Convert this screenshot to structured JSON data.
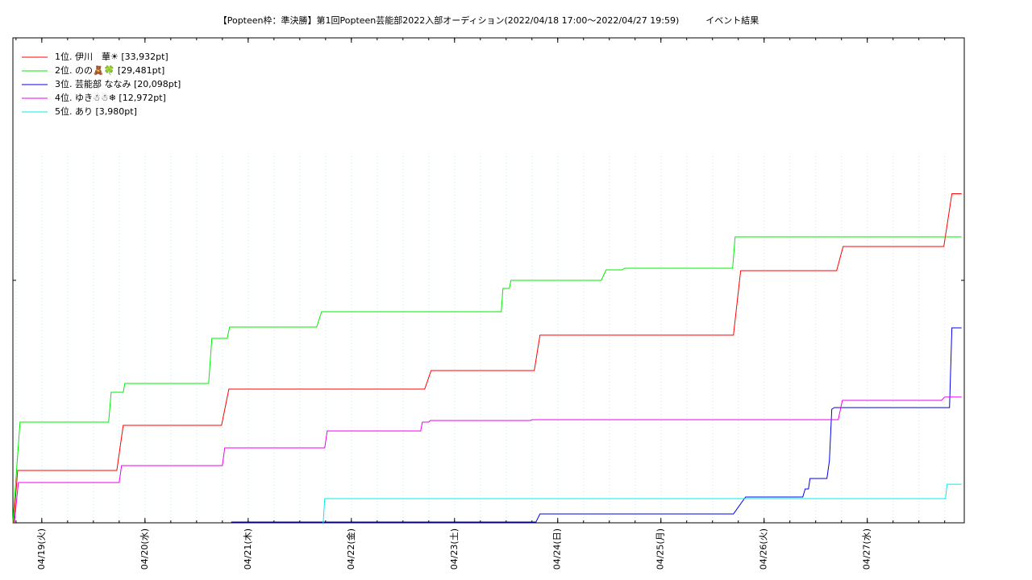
{
  "chart_data": {
    "type": "line",
    "title": "【Popteen枠：準決勝】第1回Popteen芸能部2022入部オーディション(2022/04/18 17:00〜2022/04/27 19:59)　　　イベント結果",
    "xlim": [
      18.72,
      27.94
    ],
    "xticks": [
      {
        "value": 19,
        "label": "04/19(火)"
      },
      {
        "value": 20,
        "label": "04/20(水)"
      },
      {
        "value": 21,
        "label": "04/21(木)"
      },
      {
        "value": 22,
        "label": "04/22(金)"
      },
      {
        "value": 23,
        "label": "04/23(土)"
      },
      {
        "value": 24,
        "label": "04/24(日)"
      },
      {
        "value": 25,
        "label": "04/25(月)"
      },
      {
        "value": 26,
        "label": "04/26(火)"
      },
      {
        "value": 27,
        "label": "04/27(水)"
      }
    ],
    "ylim": [
      0,
      50000
    ],
    "yticks": [
      0,
      25000,
      50000
    ],
    "legend": "upper left",
    "series": [
      {
        "name": "1位. 伊川　華☀ [33,932pt]",
        "color": "#ff0000",
        "x": [
          18.727,
          18.766,
          19.727,
          19.789,
          20.742,
          20.813,
          22.711,
          22.773,
          23.773,
          23.828,
          25.703,
          25.773,
          26.703,
          26.766,
          27.742,
          27.82,
          27.914
        ],
        "values": [
          0,
          5399,
          5399,
          10050,
          10050,
          13788,
          13788,
          15698,
          15698,
          19353,
          19353,
          25998,
          25998,
          28490,
          28490,
          33932,
          33932
        ]
      },
      {
        "name": "2位. のの🧸🍀 [29,481pt]",
        "color": "#00ee00",
        "x": [
          18.719,
          18.789,
          19.648,
          19.672,
          19.789,
          19.805,
          20.617,
          20.648,
          20.797,
          20.82,
          21.664,
          21.711,
          23.453,
          23.469,
          23.531,
          23.547,
          24.422,
          24.469,
          24.625,
          24.648,
          25.695,
          25.719,
          27.914
        ],
        "values": [
          0,
          10383,
          10383,
          13456,
          13456,
          14369,
          14369,
          19021,
          19021,
          20184,
          20184,
          21762,
          21762,
          24170,
          24170,
          25000,
          25000,
          26081,
          26081,
          26247,
          26247,
          29481,
          29481
        ]
      },
      {
        "name": "3位. 芸能部 ななみ [20,098pt]",
        "color": "#0000ee",
        "x": [
          20.836,
          23.789,
          23.828,
          25.703,
          25.82,
          26.375,
          26.398,
          26.43,
          26.445,
          26.609,
          26.633,
          26.656,
          26.68,
          27.797,
          27.82,
          27.914
        ],
        "values": [
          83,
          83,
          914,
          914,
          2658,
          2658,
          3489,
          3489,
          4568,
          4568,
          6396,
          11711,
          11877,
          11877,
          20098,
          20098
        ]
      },
      {
        "name": "4位. ゆき☃☃❄ [12,972pt]",
        "color": "#ee00ee",
        "x": [
          18.734,
          18.773,
          19.75,
          19.773,
          20.75,
          20.773,
          21.742,
          21.766,
          22.672,
          22.688,
          22.75,
          22.766,
          23.734,
          23.75,
          26.719,
          26.758,
          27.719,
          27.75,
          27.914
        ],
        "values": [
          0,
          4153,
          4153,
          5897,
          5897,
          7725,
          7725,
          9469,
          9469,
          10383,
          10383,
          10549,
          10549,
          10632,
          10632,
          12625,
          12625,
          12972,
          12972
        ]
      },
      {
        "name": "5位. あり [3,980pt]",
        "color": "#00eeee",
        "x": [
          21.727,
          21.742,
          27.758,
          27.773,
          27.914
        ],
        "values": [
          0,
          2492,
          2492,
          3980,
          3980
        ]
      }
    ]
  }
}
